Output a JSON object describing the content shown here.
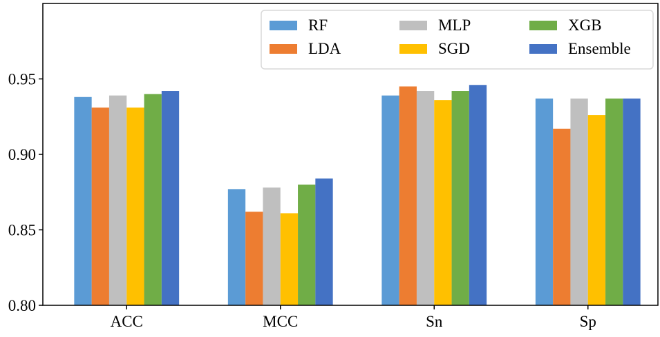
{
  "chart_data": {
    "type": "bar",
    "title": "",
    "xlabel": "",
    "ylabel": "",
    "categories": [
      "ACC",
      "MCC",
      "Sn",
      "Sp"
    ],
    "ylim": [
      0.8,
      1.0
    ],
    "yticks": [
      "0.80",
      "0.85",
      "0.90",
      "0.95"
    ],
    "ytick_values": [
      0.8,
      0.85,
      0.9,
      0.95
    ],
    "grid": false,
    "legend_position": "top-right",
    "series": [
      {
        "name": "RF",
        "color": "#5b9bd5",
        "values": [
          0.938,
          0.877,
          0.939,
          0.937
        ]
      },
      {
        "name": "LDA",
        "color": "#ed7d31",
        "values": [
          0.931,
          0.862,
          0.945,
          0.917
        ]
      },
      {
        "name": "MLP",
        "color": "#bfbfbf",
        "values": [
          0.939,
          0.878,
          0.942,
          0.937
        ]
      },
      {
        "name": "SGD",
        "color": "#ffc000",
        "values": [
          0.931,
          0.861,
          0.936,
          0.926
        ]
      },
      {
        "name": "XGB",
        "color": "#70ad47",
        "values": [
          0.94,
          0.88,
          0.942,
          0.937
        ]
      },
      {
        "name": "Ensemble",
        "color": "#4472c4",
        "values": [
          0.942,
          0.884,
          0.946,
          0.937
        ]
      }
    ]
  }
}
